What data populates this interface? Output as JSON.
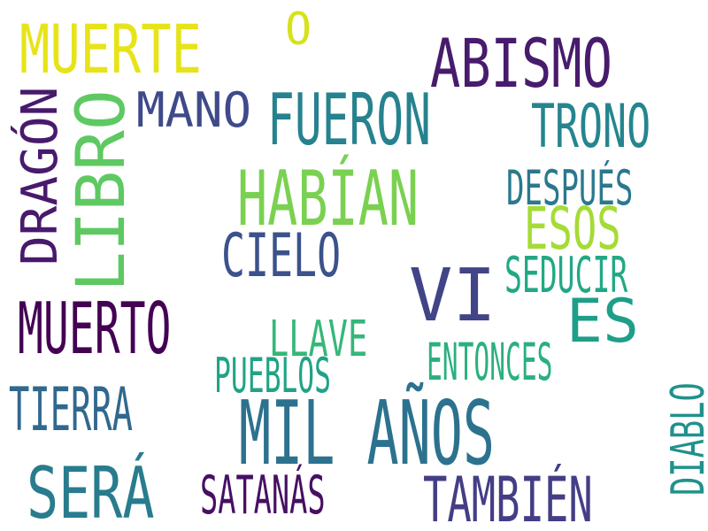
{
  "words": {
    "muerte": {
      "text": "MUERTE",
      "color": "#e6e419"
    },
    "o": {
      "text": "O",
      "color": "#d6e21a"
    },
    "abismo": {
      "text": "ABISMO",
      "color": "#481b6d"
    },
    "dragon": {
      "text": "DRAGÓN",
      "color": "#481a6c"
    },
    "libro": {
      "text": "LIBRO",
      "color": "#5ec962"
    },
    "mano": {
      "text": "MANO",
      "color": "#3e4a89"
    },
    "fueron": {
      "text": "FUERON",
      "color": "#26828e"
    },
    "trono": {
      "text": "TRONO",
      "color": "#25858e"
    },
    "habian": {
      "text": "HABÍAN",
      "color": "#7ad151"
    },
    "despues": {
      "text": "DESPUÉS",
      "color": "#2a788e"
    },
    "esos": {
      "text": "ESOS",
      "color": "#a5db36"
    },
    "cielo": {
      "text": "CIELO",
      "color": "#3b528b"
    },
    "seducir": {
      "text": "SEDUCIR",
      "color": "#22a884"
    },
    "vi": {
      "text": "VI",
      "color": "#414487"
    },
    "muerto": {
      "text": "MUERTO",
      "color": "#440154"
    },
    "es": {
      "text": "ES",
      "color": "#1f9e89"
    },
    "llave": {
      "text": "LLAVE",
      "color": "#35b779"
    },
    "pueblos": {
      "text": "PUEBLOS",
      "color": "#20a386"
    },
    "entonces": {
      "text": "ENTONCES",
      "color": "#2ab07f"
    },
    "diablo": {
      "text": "DIABLO",
      "color": "#21918c"
    },
    "tierra": {
      "text": "TIERRA",
      "color": "#31688e"
    },
    "mil_anos": {
      "text": "MIL AÑOS",
      "color": "#2c728e"
    },
    "sera": {
      "text": "SERÁ",
      "color": "#287c8e"
    },
    "satanas": {
      "text": "SATANÁS",
      "color": "#471063"
    },
    "tambien": {
      "text": "TAMBIÉN",
      "color": "#433e85"
    }
  }
}
